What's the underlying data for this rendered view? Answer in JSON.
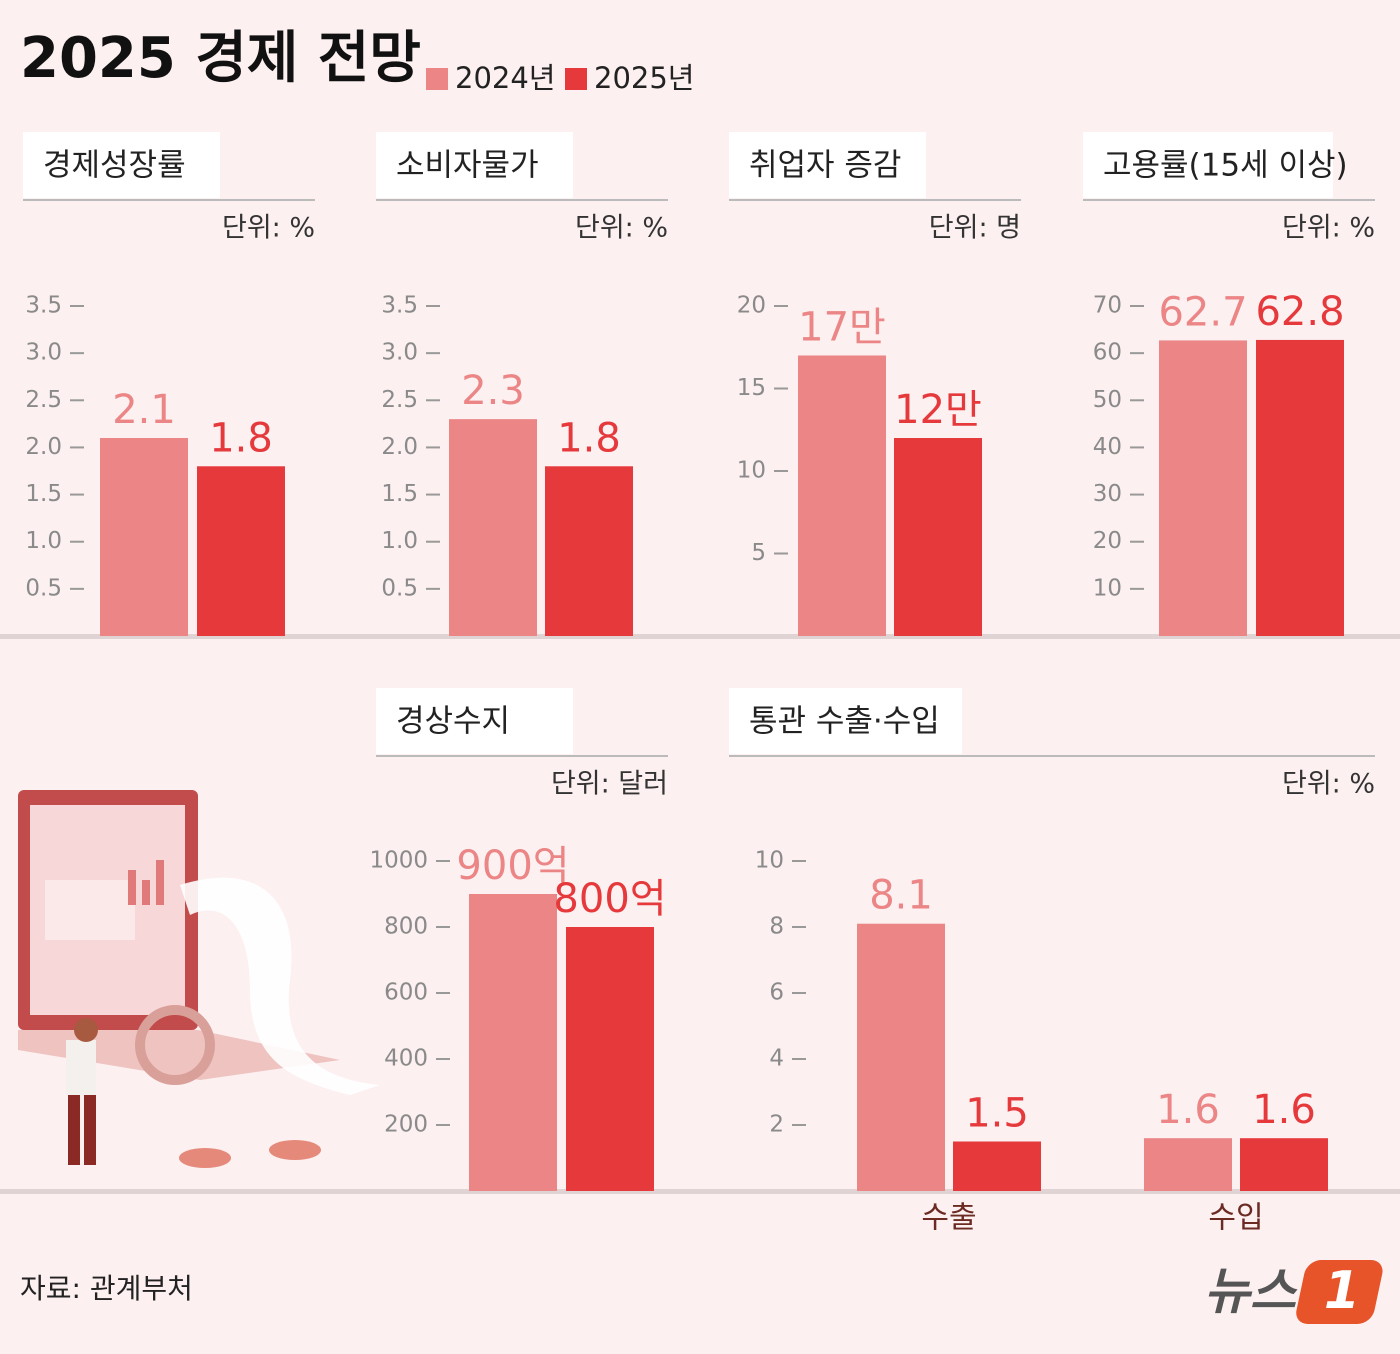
{
  "title": "2025 경제 전망",
  "legend": [
    {
      "name": "2024년",
      "color": "#ec8585"
    },
    {
      "name": "2025년",
      "color": "#e5393c"
    }
  ],
  "chart_data": [
    {
      "type": "bar",
      "title": "경제성장률",
      "unit": "단위: %",
      "values": [
        2.1,
        1.8
      ],
      "ylim": [
        0,
        3.5
      ],
      "yticks": [
        0.5,
        {
          "value": 1,
          "label": "1.0"
        },
        1.5,
        {
          "value": 2,
          "label": "2.0"
        },
        2.5,
        {
          "value": 3,
          "label": "3.0"
        },
        3.5
      ]
    },
    {
      "type": "bar",
      "title": "소비자물가",
      "unit": "단위: %",
      "values": [
        2.3,
        1.8
      ],
      "ylim": [
        0,
        3.5
      ],
      "yticks": [
        0.5,
        {
          "value": 1,
          "label": "1.0"
        },
        1.5,
        {
          "value": 2,
          "label": "2.0"
        },
        2.5,
        {
          "value": 3,
          "label": "3.0"
        },
        3.5
      ]
    },
    {
      "type": "bar",
      "title": "취업자 증감",
      "unit": "단위: 명",
      "values": [
        17,
        12
      ],
      "value_labels": [
        "17만",
        "12만"
      ],
      "ylim": [
        0,
        20
      ],
      "yticks": [
        5,
        10,
        15,
        20
      ]
    },
    {
      "type": "bar",
      "title": "고용률(15세 이상)",
      "unit": "단위: %",
      "values": [
        62.7,
        62.8
      ],
      "ylim": [
        0,
        70
      ],
      "yticks": [
        10,
        20,
        30,
        40,
        50,
        60,
        70
      ]
    },
    {
      "type": "bar",
      "title": "경상수지",
      "unit": "단위: 달러",
      "values": [
        900,
        800
      ],
      "value_labels": [
        "900억",
        "800억"
      ],
      "ylim": [
        0,
        1000
      ],
      "yticks": [
        200,
        400,
        600,
        800,
        1000
      ]
    },
    {
      "type": "bar",
      "title": "통관 수출·수입",
      "unit": "단위: %",
      "categories": [
        "수출",
        "수입"
      ],
      "series": [
        {
          "values": [
            8.1,
            1.6
          ]
        },
        {
          "values": [
            1.5,
            1.6
          ]
        }
      ],
      "ylim": [
        0,
        10
      ],
      "yticks": [
        2,
        4,
        6,
        8,
        10
      ]
    }
  ],
  "source": "자료: 관계부처",
  "logo": {
    "text": "뉴스",
    "mark": "1"
  }
}
